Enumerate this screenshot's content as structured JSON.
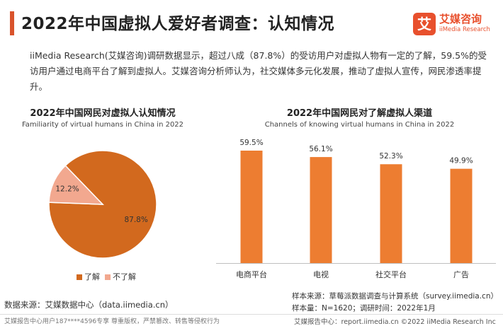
{
  "header": {
    "title": "2022年中国虚拟人爱好者调查：认知情况",
    "logo_mark": "艾",
    "logo_cn": "艾媒咨询",
    "logo_en": "iiMedia Research"
  },
  "intro": "iiMedia Research(艾媒咨询)调研数据显示，超过八成（87.8%）的受访用户对虚拟人物有一定的了解，59.5%的受访用户通过电商平台了解到虚拟人。艾媒咨询分析师认为，社交媒体多元化发展，推动了虚拟人宣传，网民渗透率提升。",
  "colors": {
    "accent": "#d9532c",
    "pie_main": "#d2691e",
    "pie_minor": "#f2a88f",
    "bar": "#ed7d31"
  },
  "chart_data": [
    {
      "type": "pie",
      "title": "2022年中国网民对虚拟人认知情况",
      "subtitle": "Familiarity of virtual humans in China in 2022",
      "slices": [
        {
          "label": "了解",
          "value": 87.8,
          "display": "87.8%"
        },
        {
          "label": "不了解",
          "value": 12.2,
          "display": "12.2%"
        }
      ],
      "legend_position": "bottom"
    },
    {
      "type": "bar",
      "title": "2022年中国网民对了解虚拟人渠道",
      "subtitle": "Channels of knowing virtual humans in China in 2022",
      "categories": [
        "电商平台",
        "电视",
        "社交平台",
        "广告"
      ],
      "values": [
        59.5,
        56.1,
        52.3,
        49.9
      ],
      "labels": [
        "59.5%",
        "56.1%",
        "52.3%",
        "49.9%"
      ],
      "grid": false
    }
  ],
  "sample_source": "样本来源：草莓派数据调查与计算系统（survey.iimedia.cn）",
  "sample_size": "样本量：N=1620；调研时间：2022年1月",
  "data_source": "数据来源：艾媒数据中心（data.iimedia.cn）",
  "footer_left": "艾媒报告中心用户187****4596专享 尊重版权，严禁篡改、转售等侵权行为",
  "footer_right": "艾媒报告中心：report.iimedia.cn  ©2022 iiMedia Research Inc"
}
